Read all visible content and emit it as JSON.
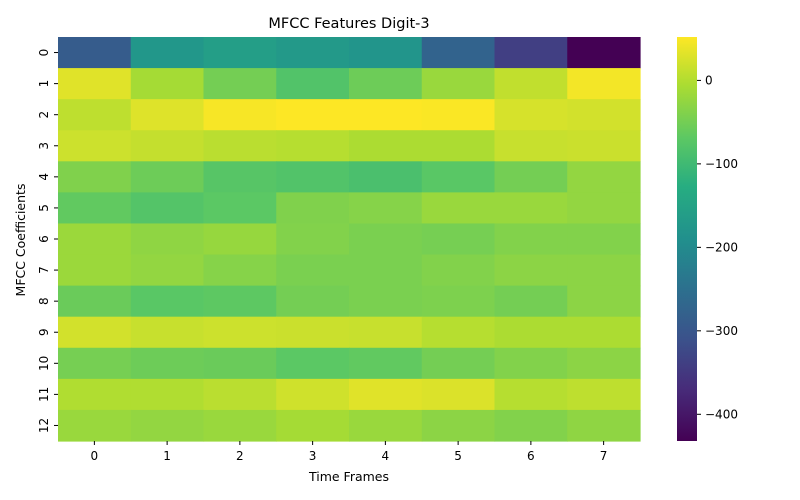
{
  "chart_data": {
    "type": "heatmap",
    "title": "MFCC Features Digit-3",
    "xlabel": "Time Frames",
    "ylabel": "MFCC Coefficients",
    "x_ticks": [
      "0",
      "1",
      "2",
      "3",
      "4",
      "5",
      "6",
      "7"
    ],
    "y_ticks": [
      "0",
      "1",
      "2",
      "3",
      "4",
      "5",
      "6",
      "7",
      "8",
      "9",
      "10",
      "11",
      "12"
    ],
    "colormap": "viridis",
    "color_range": [
      -432,
      52
    ],
    "colorbar_ticks": [
      0,
      -100,
      -200,
      -300,
      -400
    ],
    "colorbar_tick_labels": [
      "0",
      "−100",
      "−200",
      "−300",
      "−400"
    ],
    "values": [
      [
        -290,
        -175,
        -160,
        -170,
        -180,
        -275,
        -340,
        -432
      ],
      [
        32,
        -10,
        -50,
        -80,
        -55,
        -20,
        10,
        45
      ],
      [
        8,
        30,
        48,
        52,
        52,
        50,
        25,
        22
      ],
      [
        18,
        12,
        5,
        2,
        -5,
        -5,
        14,
        16
      ],
      [
        -40,
        -55,
        -75,
        -80,
        -88,
        -72,
        -50,
        -25
      ],
      [
        -65,
        -78,
        -70,
        -40,
        -35,
        -20,
        -20,
        -25
      ],
      [
        -18,
        -28,
        -22,
        -38,
        -45,
        -48,
        -38,
        -38
      ],
      [
        -18,
        -25,
        -35,
        -45,
        -45,
        -38,
        -30,
        -30
      ],
      [
        -58,
        -72,
        -68,
        -50,
        -45,
        -42,
        -50,
        -30
      ],
      [
        22,
        14,
        18,
        16,
        14,
        2,
        -5,
        -5
      ],
      [
        -48,
        -55,
        -58,
        -70,
        -65,
        -50,
        -38,
        -30
      ],
      [
        -2,
        -2,
        5,
        20,
        32,
        28,
        2,
        8
      ],
      [
        -20,
        -25,
        -20,
        -10,
        -20,
        -30,
        -38,
        -28
      ]
    ]
  }
}
